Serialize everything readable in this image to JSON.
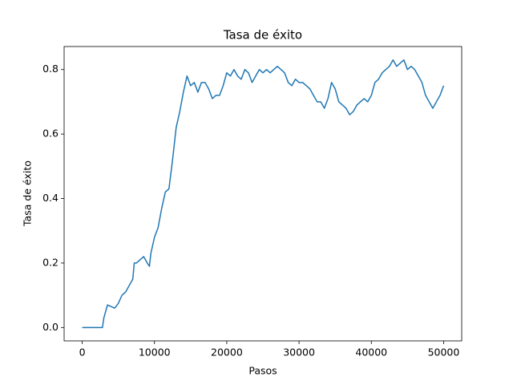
{
  "chart_data": {
    "type": "line",
    "title": "Tasa de éxito",
    "xlabel": "Pasos",
    "ylabel": "Tasa de éxito",
    "color": "#1f77b4",
    "x": [
      0,
      500,
      1000,
      1500,
      2000,
      2500,
      2800,
      3000,
      3500,
      4000,
      4500,
      5000,
      5500,
      6000,
      6500,
      7000,
      7200,
      7500,
      8000,
      8500,
      9000,
      9300,
      9500,
      10000,
      10500,
      11000,
      11500,
      12000,
      12500,
      13000,
      13500,
      14000,
      14500,
      15000,
      15500,
      16000,
      16500,
      17000,
      17500,
      18000,
      18500,
      19000,
      19500,
      20000,
      20500,
      21000,
      21500,
      22000,
      22500,
      23000,
      23500,
      24000,
      24500,
      25000,
      25500,
      26000,
      26500,
      27000,
      27500,
      28000,
      28500,
      29000,
      29500,
      30000,
      30500,
      31000,
      31500,
      32000,
      32500,
      33000,
      33500,
      34000,
      34500,
      35000,
      35500,
      36000,
      36500,
      37000,
      37500,
      38000,
      38500,
      39000,
      39500,
      40000,
      40500,
      41000,
      41500,
      42000,
      42500,
      43000,
      43500,
      44000,
      44500,
      45000,
      45500,
      46000,
      46500,
      47000,
      47500,
      48000,
      48500,
      49000,
      49500,
      50000
    ],
    "values": [
      0,
      0,
      0,
      0,
      0,
      0,
      0,
      0.03,
      0.07,
      0.065,
      0.06,
      0.075,
      0.1,
      0.11,
      0.13,
      0.15,
      0.2,
      0.2,
      0.21,
      0.22,
      0.2,
      0.19,
      0.23,
      0.28,
      0.31,
      0.37,
      0.42,
      0.43,
      0.52,
      0.62,
      0.67,
      0.73,
      0.78,
      0.75,
      0.76,
      0.73,
      0.76,
      0.76,
      0.74,
      0.71,
      0.72,
      0.72,
      0.75,
      0.79,
      0.78,
      0.8,
      0.78,
      0.77,
      0.8,
      0.79,
      0.76,
      0.78,
      0.8,
      0.79,
      0.8,
      0.79,
      0.8,
      0.81,
      0.8,
      0.79,
      0.76,
      0.75,
      0.77,
      0.76,
      0.76,
      0.75,
      0.74,
      0.72,
      0.7,
      0.7,
      0.68,
      0.71,
      0.76,
      0.74,
      0.7,
      0.69,
      0.68,
      0.66,
      0.67,
      0.69,
      0.7,
      0.71,
      0.7,
      0.72,
      0.76,
      0.77,
      0.79,
      0.8,
      0.81,
      0.83,
      0.81,
      0.82,
      0.83,
      0.8,
      0.81,
      0.8,
      0.78,
      0.76,
      0.72,
      0.7,
      0.68,
      0.7,
      0.72,
      0.75
    ],
    "xlim": [
      -2500,
      52500
    ],
    "xticks": [
      0,
      10000,
      20000,
      30000,
      40000,
      50000
    ],
    "ylim": [
      -0.0415,
      0.8715
    ],
    "yticks": [
      {
        "value": 0,
        "label": "0.0"
      },
      0.2,
      0.4,
      0.6,
      0.8
    ]
  }
}
